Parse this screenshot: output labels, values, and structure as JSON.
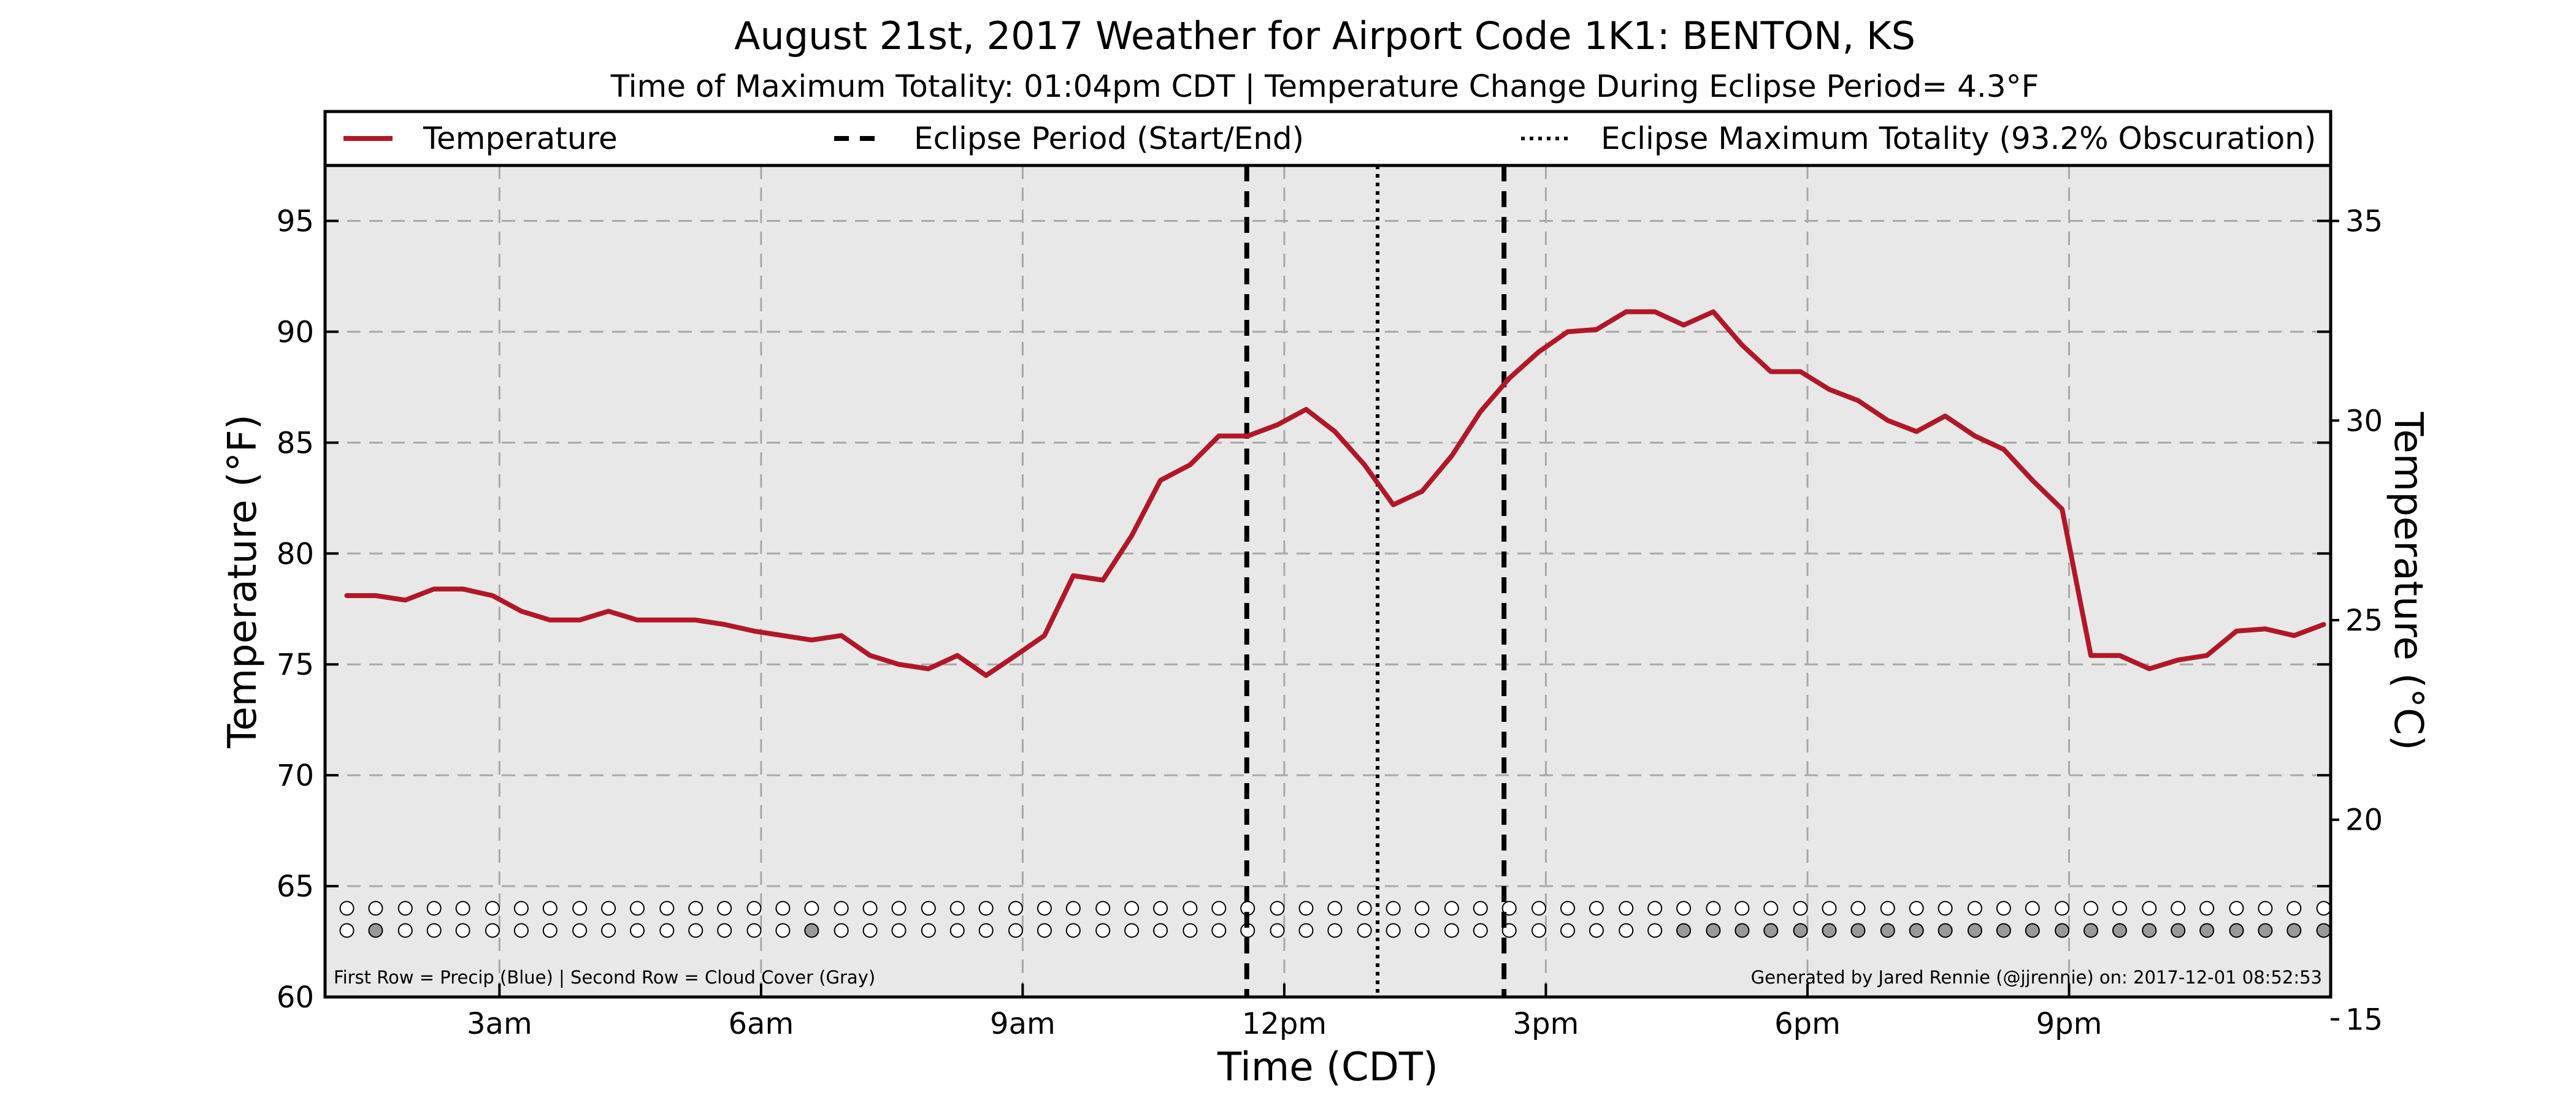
{
  "chart_data": {
    "type": "line",
    "title": "August 21st, 2017 Weather for Airport Code 1K1: BENTON, KS",
    "subtitle": "Time of Maximum Totality: 01:04pm CDT | Temperature Change During Eclipse Period= 4.3°F",
    "xlabel": "Time (CDT)",
    "ylabel": "Temperature (°F)",
    "y2label": "Temperature (°C)",
    "xlim": [
      1.0,
      24.0
    ],
    "ylim": [
      60,
      97.5
    ],
    "y2lim": [
      15.56,
      36.39
    ],
    "x_ticks": [
      {
        "x": 3,
        "label": "3am"
      },
      {
        "x": 6,
        "label": "6am"
      },
      {
        "x": 9,
        "label": "9am"
      },
      {
        "x": 12,
        "label": "12pm"
      },
      {
        "x": 15,
        "label": "3pm"
      },
      {
        "x": 18,
        "label": "6pm"
      },
      {
        "x": 21,
        "label": "9pm"
      }
    ],
    "y_ticks": [
      60,
      65,
      70,
      75,
      80,
      85,
      90,
      95
    ],
    "y2_ticks": [
      15,
      20,
      25,
      30,
      35
    ],
    "grid": true,
    "legend_position": "top",
    "legend": {
      "temperature": "Temperature",
      "eclipse_period": "Eclipse Period (Start/End)",
      "max_totality": "Eclipse Maximum Totality (93.2% Obscuration)"
    },
    "eclipse_start": 11.57,
    "eclipse_end": 14.52,
    "eclipse_max": 13.07,
    "series": [
      {
        "name": "Temperature",
        "x": [
          1.25,
          1.58,
          1.92,
          2.25,
          2.58,
          2.92,
          3.25,
          3.58,
          3.92,
          4.25,
          4.58,
          4.92,
          5.25,
          5.58,
          5.92,
          6.25,
          6.58,
          6.92,
          7.25,
          7.58,
          7.92,
          8.25,
          8.58,
          8.92,
          9.25,
          9.58,
          9.92,
          10.25,
          10.58,
          10.92,
          11.25,
          11.58,
          11.92,
          12.25,
          12.58,
          12.92,
          13.25,
          13.58,
          13.92,
          14.25,
          14.58,
          14.92,
          15.25,
          15.58,
          15.92,
          16.25,
          16.58,
          16.92,
          17.25,
          17.58,
          17.92,
          18.25,
          18.58,
          18.92,
          19.25,
          19.58,
          19.92,
          20.25,
          20.58,
          20.92,
          21.25,
          21.58,
          21.92,
          22.25,
          22.58,
          22.92,
          23.25,
          23.58,
          23.92
        ],
        "values": [
          78.1,
          78.1,
          77.9,
          78.4,
          78.4,
          78.1,
          77.4,
          77.0,
          77.0,
          77.4,
          77.0,
          77.0,
          77.0,
          76.8,
          76.5,
          76.3,
          76.1,
          76.3,
          75.4,
          75.0,
          74.8,
          75.4,
          74.5,
          75.4,
          76.3,
          79.0,
          78.8,
          80.8,
          83.3,
          84.0,
          85.3,
          85.3,
          85.8,
          86.5,
          85.5,
          84.0,
          82.2,
          82.8,
          84.4,
          86.4,
          87.9,
          89.1,
          90.0,
          90.1,
          90.9,
          90.9,
          90.3,
          90.9,
          89.4,
          88.2,
          88.2,
          87.4,
          86.9,
          86.0,
          85.5,
          86.2,
          85.3,
          84.7,
          83.3,
          82.0,
          75.4,
          75.4,
          74.8,
          75.2,
          75.4,
          76.5,
          76.6,
          76.3,
          76.8
        ]
      }
    ],
    "indicator_rows": {
      "precip_row_y": 64.0,
      "cloud_row_y": 63.0,
      "x": [
        1.25,
        1.58,
        1.92,
        2.25,
        2.58,
        2.92,
        3.25,
        3.58,
        3.92,
        4.25,
        4.58,
        4.92,
        5.25,
        5.58,
        5.92,
        6.25,
        6.58,
        6.92,
        7.25,
        7.58,
        7.92,
        8.25,
        8.58,
        8.92,
        9.25,
        9.58,
        9.92,
        10.25,
        10.58,
        10.92,
        11.25,
        11.58,
        11.92,
        12.25,
        12.58,
        12.92,
        13.25,
        13.58,
        13.92,
        14.25,
        14.58,
        14.92,
        15.25,
        15.58,
        15.92,
        16.25,
        16.58,
        16.92,
        17.25,
        17.58,
        17.92,
        18.25,
        18.58,
        18.92,
        19.25,
        19.58,
        19.92,
        20.25,
        20.58,
        20.92,
        21.25,
        21.58,
        21.92,
        22.25,
        22.58,
        22.92,
        23.25,
        23.58,
        23.92
      ],
      "precip": [
        0,
        0,
        0,
        0,
        0,
        0,
        0,
        0,
        0,
        0,
        0,
        0,
        0,
        0,
        0,
        0,
        0,
        0,
        0,
        0,
        0,
        0,
        0,
        0,
        0,
        0,
        0,
        0,
        0,
        0,
        0,
        0,
        0,
        0,
        0,
        0,
        0,
        0,
        0,
        0,
        0,
        0,
        0,
        0,
        0,
        0,
        0,
        0,
        0,
        0,
        0,
        0,
        0,
        0,
        0,
        0,
        0,
        0,
        0,
        0,
        0,
        0,
        0,
        0,
        0,
        0,
        0,
        0,
        0
      ],
      "cloud": [
        0,
        1,
        0,
        0,
        0,
        0,
        0,
        0,
        0,
        0,
        0,
        0,
        0,
        0,
        0,
        0,
        1,
        0,
        0,
        0,
        0,
        0,
        0,
        0,
        0,
        0,
        0,
        0,
        0,
        0,
        0,
        0,
        0,
        0,
        0,
        0,
        0,
        0,
        0,
        0,
        0,
        0,
        0,
        0,
        0,
        0,
        1,
        1,
        1,
        1,
        1,
        1,
        1,
        1,
        1,
        1,
        1,
        1,
        1,
        1,
        1,
        1,
        1,
        1,
        1,
        1,
        1,
        1,
        1
      ],
      "colors": {
        "clear": "#ffffff",
        "cloud": "#999999",
        "precip": "#4477cc"
      }
    },
    "footnote_left": "First Row = Precip (Blue) | Second Row = Cloud Cover (Gray)",
    "footnote_right": "Generated by Jared Rennie (@jjrennie) on: 2017-12-01 08:52:53",
    "colors": {
      "line": "#b0182a",
      "plot_background": "#e8e8e8",
      "grid": "#a8a8a8",
      "eclipse_lines": "#000000"
    }
  }
}
